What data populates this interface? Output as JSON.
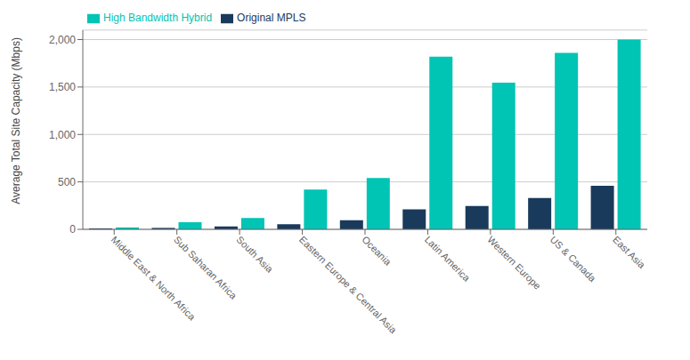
{
  "chart_data": {
    "type": "bar",
    "categories": [
      "Middle East & North Africa",
      "Sub Saharan Africa",
      "South Asia",
      "Eastern Europe & Central Asia",
      "Oceania",
      "Latin America",
      "Western Europe",
      "US & Canada",
      "East Asia"
    ],
    "series": [
      {
        "name": "Original MPLS",
        "color": "#1a3a5c",
        "values": [
          10,
          15,
          30,
          55,
          95,
          210,
          245,
          330,
          460
        ]
      },
      {
        "name": "High Bandwidth Hybrid",
        "color": "#00c4b4",
        "values": [
          20,
          75,
          120,
          420,
          540,
          1820,
          1545,
          1860,
          2000
        ]
      }
    ],
    "ylabel": "Average Total Site Capacity (Mbps)",
    "ylim": [
      0,
      2100
    ],
    "yticks": [
      0,
      500,
      {
        "value": 1000,
        "label": "1,000"
      },
      {
        "value": 1500,
        "label": "1,500"
      },
      {
        "value": 2000,
        "label": "2,000"
      }
    ],
    "grid": true,
    "legend": "upper left"
  }
}
